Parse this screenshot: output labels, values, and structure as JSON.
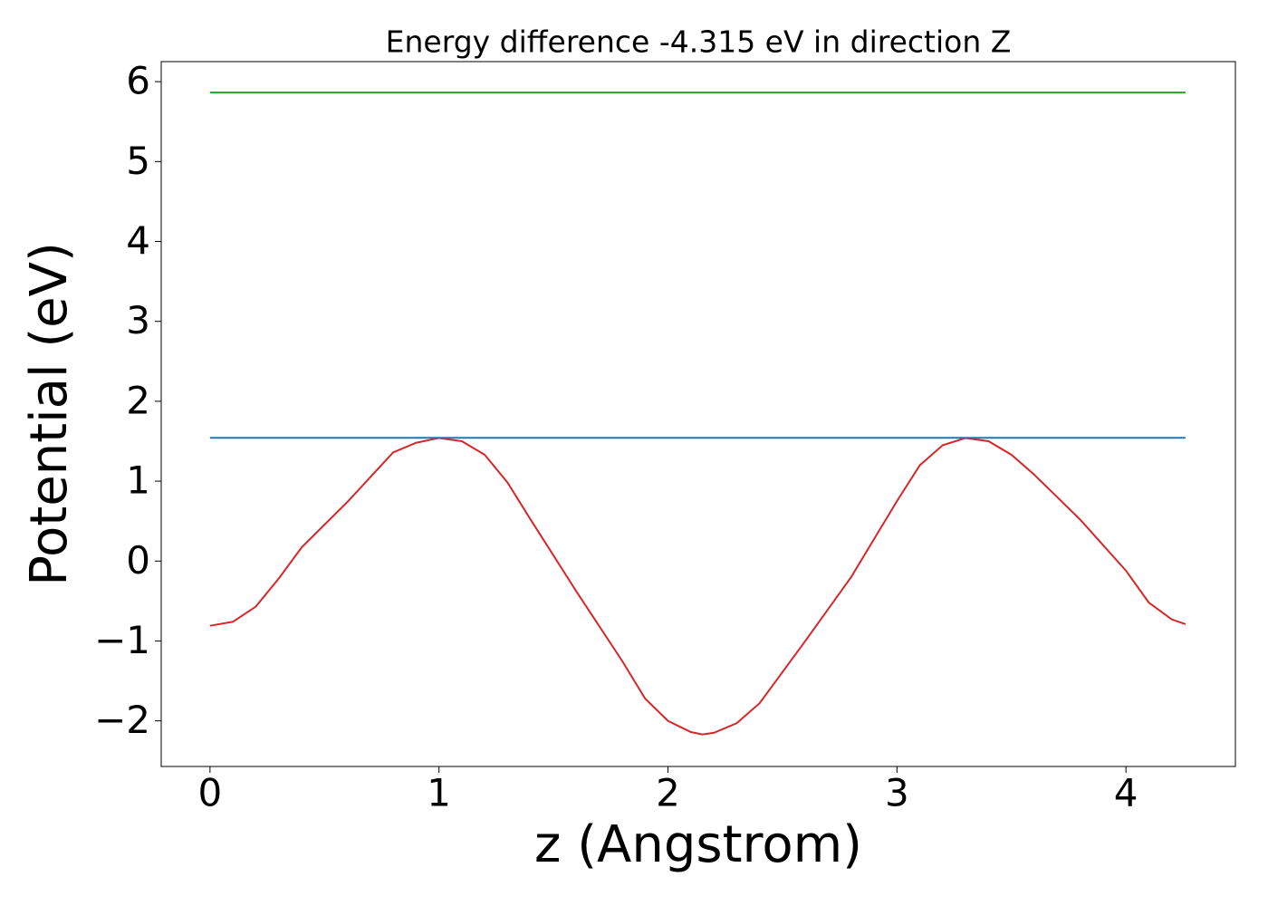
{
  "chart_data": {
    "type": "line",
    "title": "Energy difference -4.315 eV in direction Z",
    "xlabel": "z (Angstrom)",
    "ylabel": "Potential (eV)",
    "xlim": [
      -0.213,
      4.478
    ],
    "ylim": [
      -2.571,
      6.251
    ],
    "xticks": [
      0,
      1,
      2,
      3,
      4
    ],
    "yticks": [
      {
        "value": -2,
        "label": "−2"
      },
      {
        "value": -1,
        "label": "−1"
      },
      0,
      1,
      2,
      3,
      4,
      5,
      6
    ],
    "series": [
      {
        "color": "#d62728",
        "x": [
          0,
          0.1,
          0.2,
          0.3,
          0.4,
          0.6,
          0.8,
          0.9,
          1.0,
          1.1,
          1.2,
          1.3,
          1.4,
          1.6,
          1.8,
          1.9,
          2.0,
          2.1,
          2.15,
          2.2,
          2.3,
          2.4,
          2.6,
          2.8,
          3.0,
          3.1,
          3.2,
          3.3,
          3.4,
          3.5,
          3.6,
          3.8,
          4.0,
          4.1,
          4.2,
          4.26
        ],
        "values": [
          -0.81,
          -0.76,
          -0.57,
          -0.22,
          0.17,
          0.74,
          1.36,
          1.48,
          1.54,
          1.5,
          1.33,
          0.98,
          0.52,
          -0.38,
          -1.25,
          -1.72,
          -2.0,
          -2.14,
          -2.17,
          -2.15,
          -2.03,
          -1.78,
          -1.0,
          -0.2,
          0.75,
          1.2,
          1.45,
          1.54,
          1.5,
          1.33,
          1.08,
          0.52,
          -0.12,
          -0.52,
          -0.73,
          -0.79
        ]
      },
      {
        "color": "#1f77b4",
        "x": [
          0,
          4.26
        ],
        "values": [
          1.543,
          1.543
        ]
      },
      {
        "color": "#2ca02c",
        "x": [
          0,
          4.26
        ],
        "values": [
          5.864,
          5.864
        ]
      }
    ]
  }
}
